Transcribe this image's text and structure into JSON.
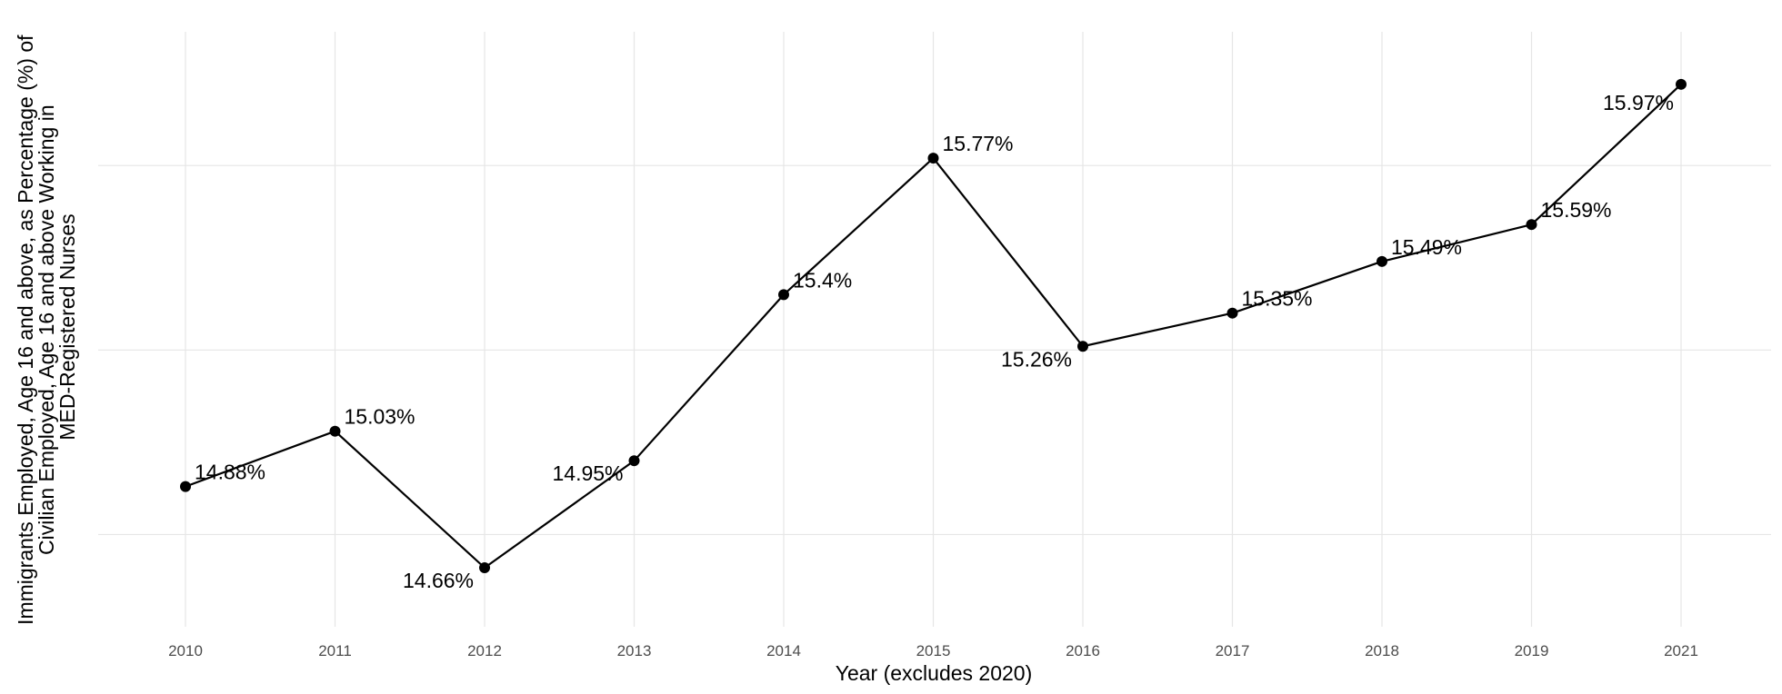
{
  "chart_data": {
    "type": "line",
    "title": "",
    "xlabel": "Year (excludes 2020)",
    "ylabel_lines": [
      "Immigrants Employed, Age 16 and above, as Percentage (%) of",
      "Civilian Employed, Age 16 and above Working in",
      "MED-Registered Nurses"
    ],
    "x": [
      "2010",
      "2011",
      "2012",
      "2013",
      "2014",
      "2015",
      "2016",
      "2017",
      "2018",
      "2019",
      "2021"
    ],
    "series": [
      {
        "values": [
          14.88,
          15.03,
          14.66,
          14.95,
          15.4,
          15.77,
          15.26,
          15.35,
          15.49,
          15.59,
          15.97
        ],
        "labels": [
          "14.88%",
          "15.03%",
          "14.66%",
          "14.95%",
          "15.4%",
          "15.77%",
          "15.26%",
          "15.35%",
          "15.49%",
          "15.59%",
          "15.97%"
        ],
        "color": "#000000"
      }
    ],
    "ylim": [
      14.5,
      16.1
    ],
    "y_gridlines": [
      14.75,
      15.25,
      15.75
    ],
    "y_tick_labels_shown": false,
    "grid": true,
    "legend": "none"
  }
}
